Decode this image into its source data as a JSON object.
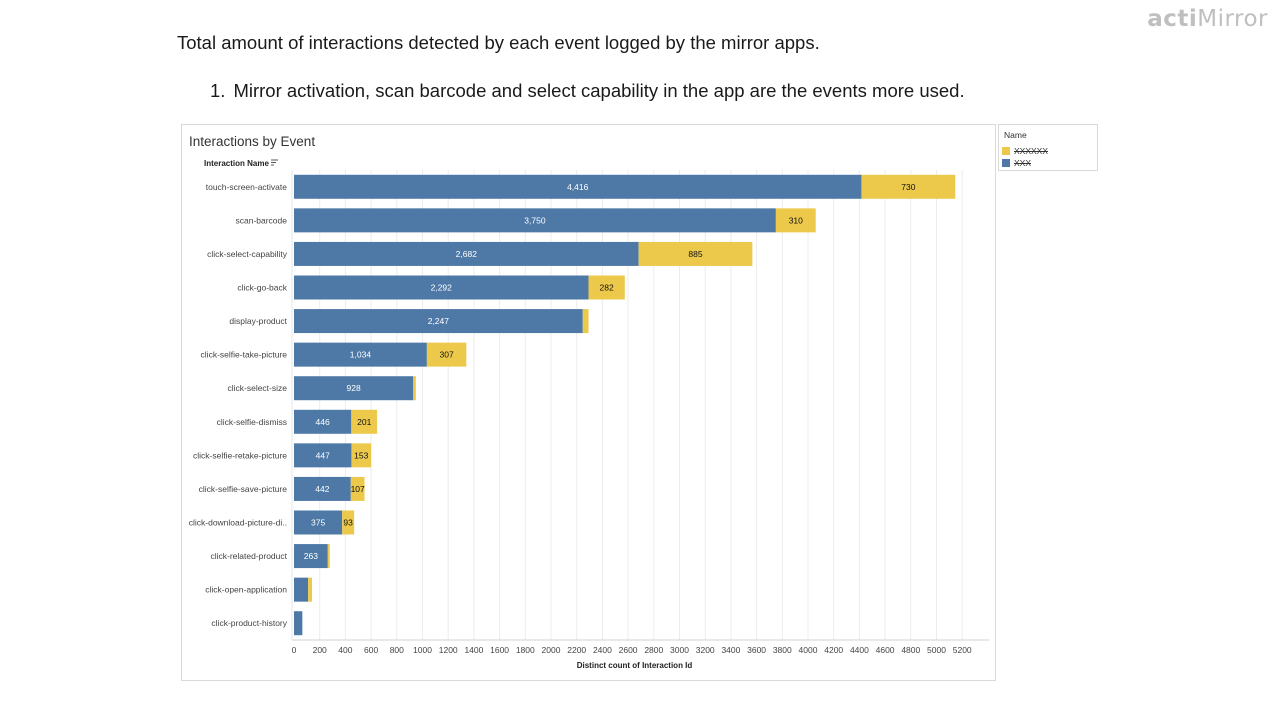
{
  "brand": {
    "prefix": "acti",
    "suffix": "Mirror"
  },
  "heading": "Total amount of interactions detected by each event logged by the mirror apps.",
  "bullets": [
    {
      "number": "1.",
      "text": "Mirror activation, scan barcode and select capability in the app are the events more used."
    }
  ],
  "legend": {
    "title": "Name",
    "items": [
      {
        "label": "XXXXXX",
        "color": "#ECC94B"
      },
      {
        "label": "XXX",
        "color": "#4E79A7"
      }
    ]
  },
  "chart_data": {
    "type": "bar",
    "orientation": "horizontal",
    "stacked": true,
    "title": "Interactions by Event",
    "row_header": "Interaction Name",
    "xlabel": "Distinct count of Interaction Id",
    "xlim": [
      0,
      5300
    ],
    "xticks": [
      0,
      200,
      400,
      600,
      800,
      1000,
      1200,
      1400,
      1600,
      1800,
      2000,
      2200,
      2400,
      2600,
      2800,
      3000,
      3200,
      3400,
      3600,
      3800,
      4000,
      4200,
      4400,
      4600,
      4800,
      5000,
      5200
    ],
    "grid": true,
    "categories": [
      "touch-screen-activate",
      "scan-barcode",
      "click-select-capability",
      "click-go-back",
      "display-product",
      "click-selfie-take-picture",
      "click-select-size",
      "click-selfie-dismiss",
      "click-selfie-retake-picture",
      "click-selfie-save-picture",
      "click-download-picture-di..",
      "click-related-product",
      "click-open-application",
      "click-product-history"
    ],
    "series": [
      {
        "name": "XXX",
        "color": "#4E79A7",
        "label_color": "#ffffff",
        "values": [
          4416,
          3750,
          2682,
          2292,
          2247,
          1034,
          928,
          446,
          447,
          442,
          375,
          263,
          110,
          65
        ],
        "labels": [
          "4,416",
          "3,750",
          "2,682",
          "2,292",
          "2,247",
          "1,034",
          "928",
          "446",
          "447",
          "442",
          "375",
          "263",
          "",
          ""
        ]
      },
      {
        "name": "XXXXXX",
        "color": "#ECC94B",
        "label_color": "#111111",
        "values": [
          730,
          310,
          885,
          282,
          45,
          307,
          20,
          201,
          153,
          107,
          93,
          15,
          30,
          0
        ],
        "labels": [
          "730",
          "310",
          "885",
          "282",
          "",
          "307",
          "",
          "201",
          "153",
          "107",
          "93",
          "",
          "",
          ""
        ]
      }
    ]
  }
}
